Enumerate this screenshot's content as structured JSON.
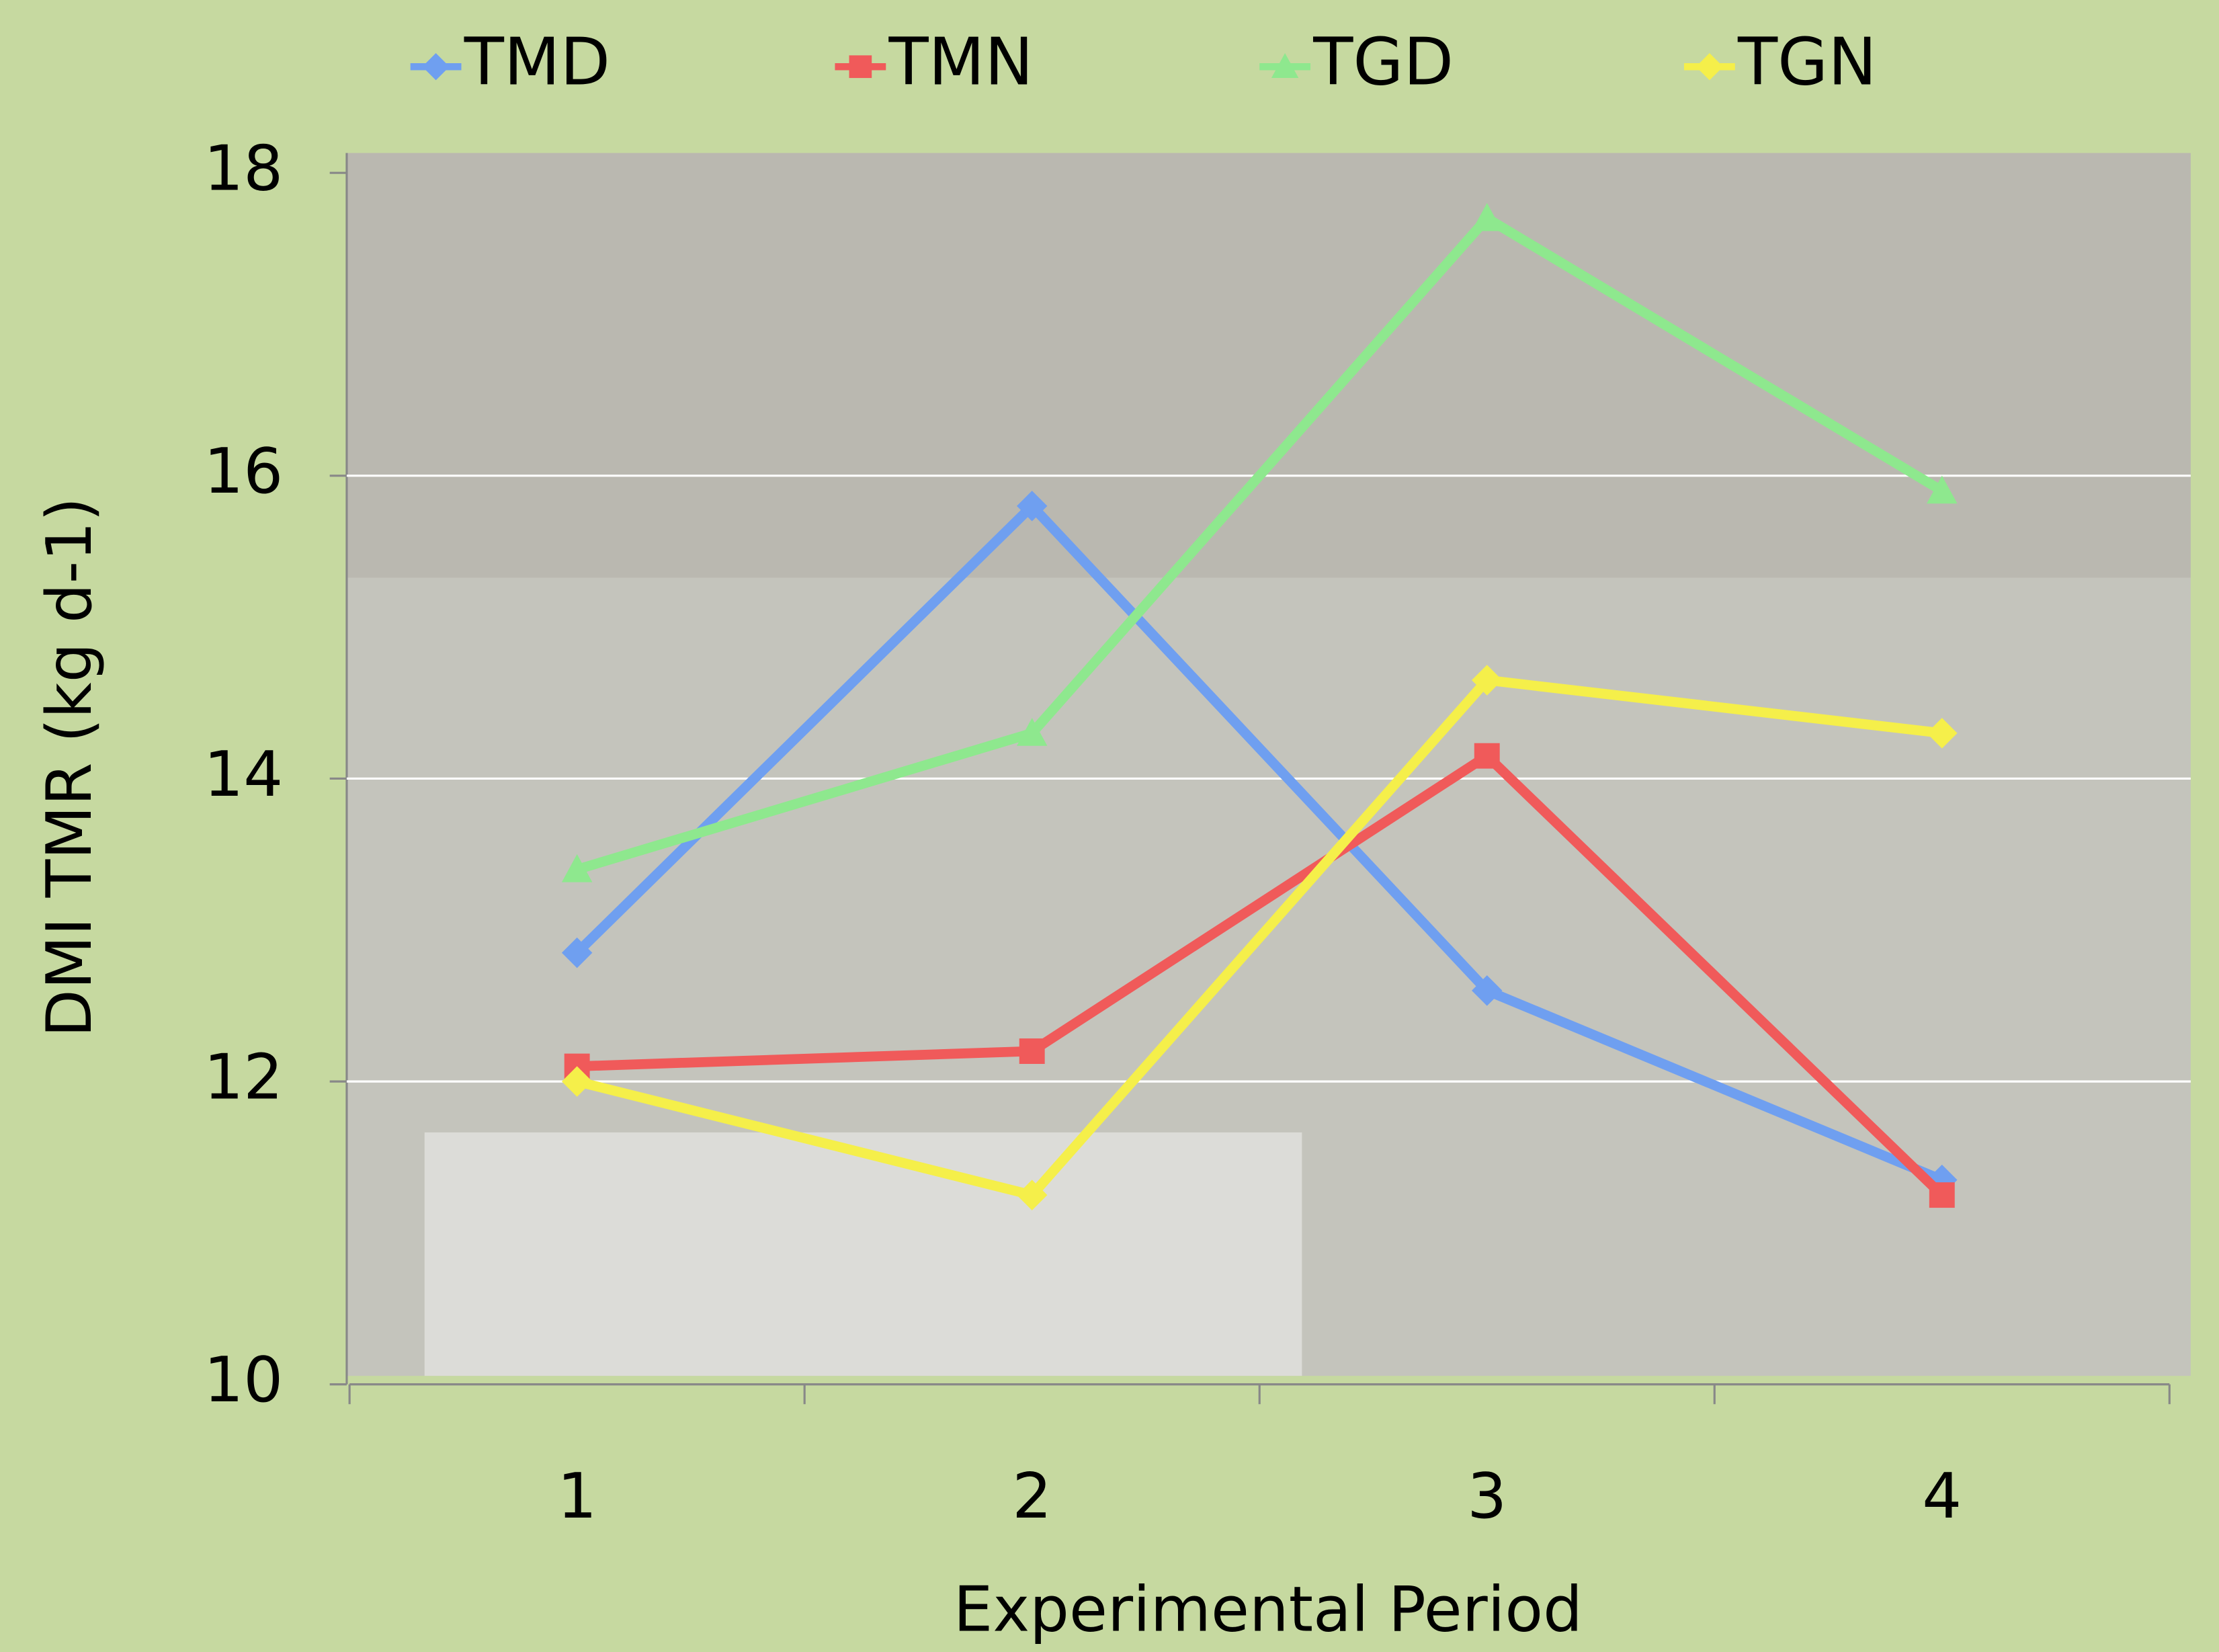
{
  "chart_data": {
    "type": "line",
    "xlabel": "Experimental Period",
    "ylabel": "DMI TMR (kg d-1)",
    "categories": [
      "1",
      "2",
      "3",
      "4"
    ],
    "series": [
      {
        "name": "TMD",
        "color": "#6f9ff0",
        "marker": "diamond",
        "values": [
          12.85,
          15.8,
          12.6,
          11.35
        ]
      },
      {
        "name": "TMN",
        "color": "#f05a5a",
        "marker": "square",
        "values": [
          12.1,
          12.2,
          14.15,
          11.25
        ]
      },
      {
        "name": "TGD",
        "color": "#8ee88e",
        "marker": "triangle",
        "values": [
          13.4,
          14.3,
          17.7,
          15.9
        ]
      },
      {
        "name": "TGN",
        "color": "#f5ef4a",
        "marker": "diamond",
        "values": [
          12.0,
          11.25,
          14.65,
          14.3
        ]
      }
    ],
    "ylim": [
      10,
      18
    ],
    "yticks": [
      10,
      12,
      14,
      16,
      18
    ],
    "grid": true,
    "legend": "top"
  }
}
